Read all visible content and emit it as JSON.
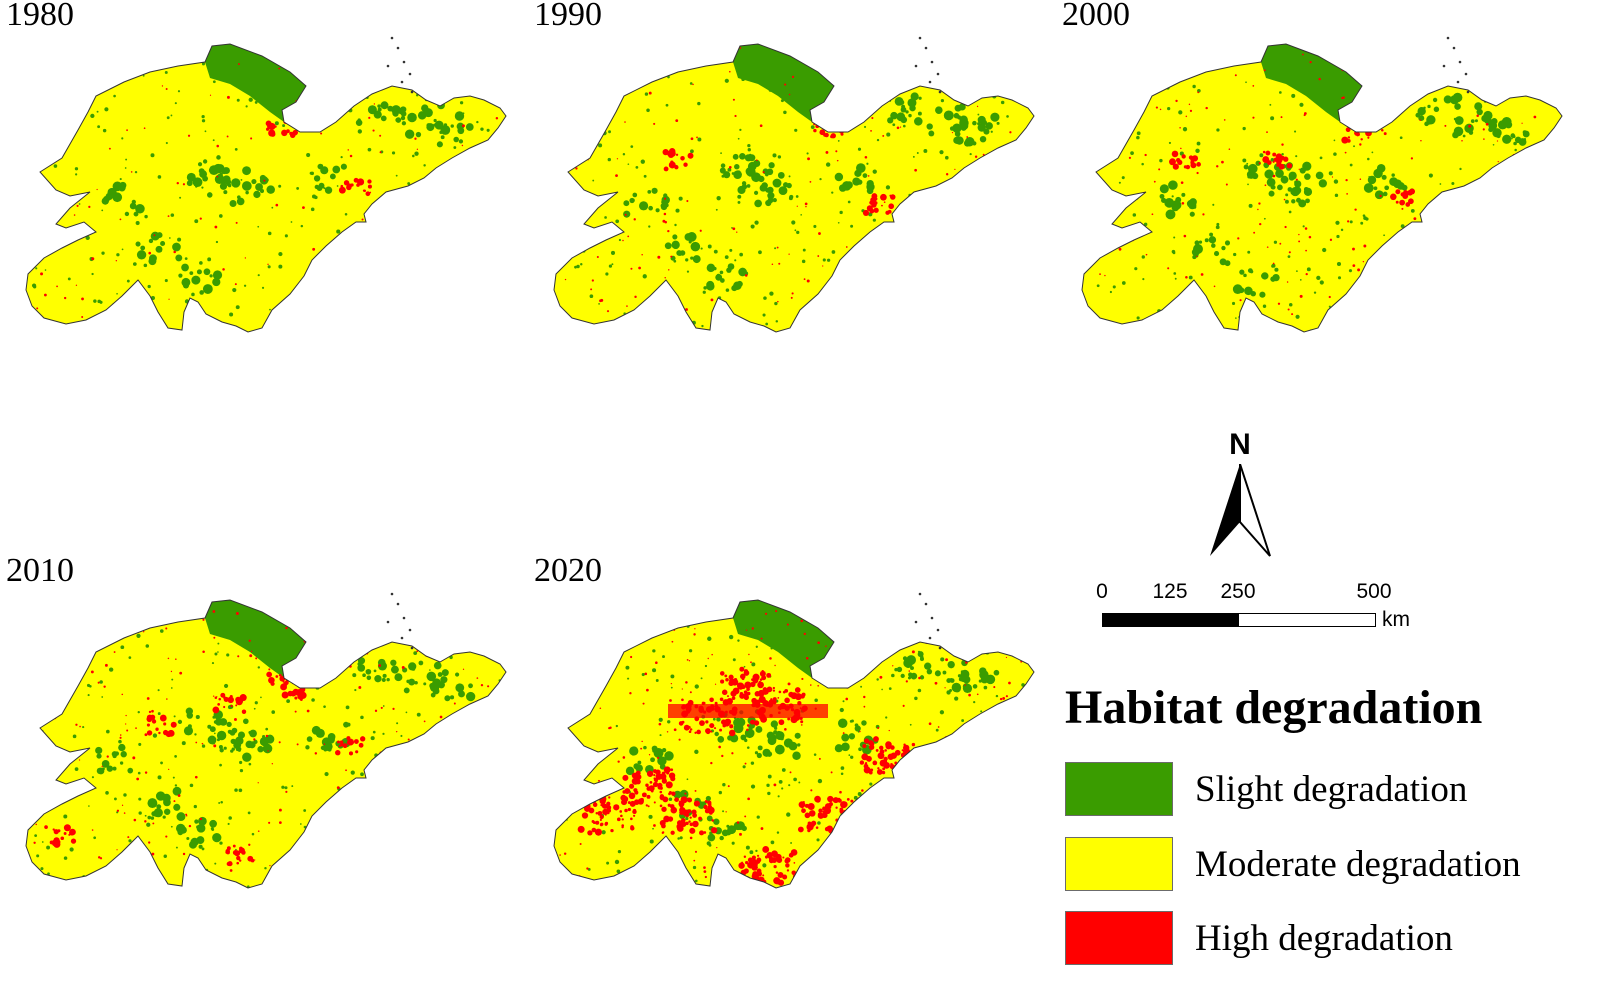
{
  "panels": [
    {
      "year": "1980"
    },
    {
      "year": "1990"
    },
    {
      "year": "2000"
    },
    {
      "year": "2010"
    },
    {
      "year": "2020"
    }
  ],
  "north_arrow": {
    "label": "N"
  },
  "scale_bar": {
    "ticks": [
      "0",
      "125",
      "250",
      "500"
    ],
    "unit": "km"
  },
  "legend": {
    "title": "Habitat degradation",
    "items": [
      {
        "label": "Slight degradation",
        "color": "#3a9c00"
      },
      {
        "label": "Moderate degradation",
        "color": "#ffff00"
      },
      {
        "label": "High degradation",
        "color": "#ff0000"
      }
    ]
  }
}
